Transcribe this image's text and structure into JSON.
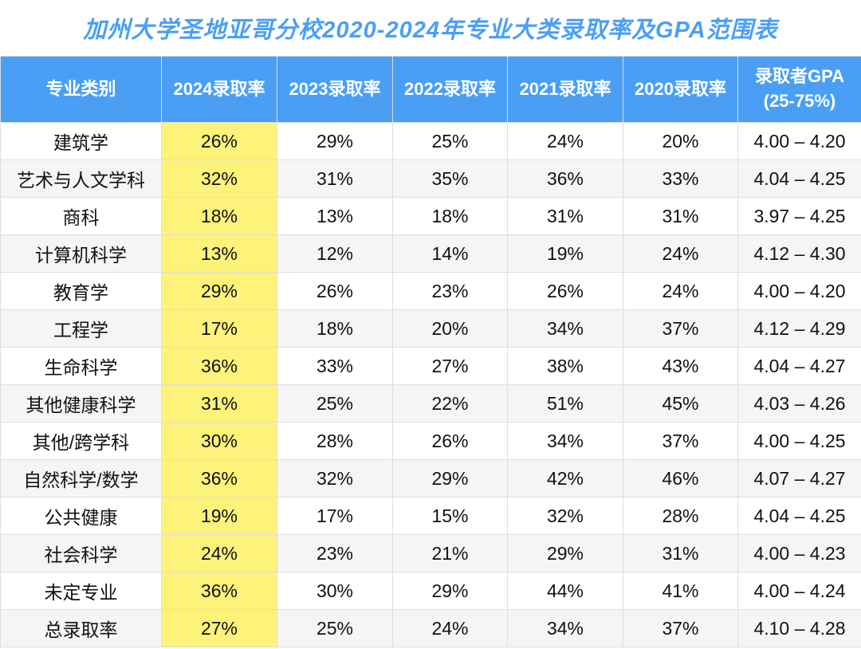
{
  "title": "加州大学圣地亚哥分校2020-2024年专业大类录取率及GPA范围表",
  "colors": {
    "header": "#4a9ff5",
    "highlight": "#fdf27a",
    "title": "#4a9ff5"
  },
  "headers": [
    "专业类别",
    "2024录取率",
    "2023录取率",
    "2022录取率",
    "2021录取率",
    "2020录取率",
    "录取者GPA",
    "(25-75%)"
  ],
  "rows": [
    [
      "建筑学",
      "26%",
      "29%",
      "25%",
      "24%",
      "20%",
      "4.00 – 4.20"
    ],
    [
      "艺术与人文学科",
      "32%",
      "31%",
      "35%",
      "36%",
      "33%",
      "4.04 – 4.25"
    ],
    [
      "商科",
      "18%",
      "13%",
      "18%",
      "31%",
      "31%",
      "3.97 – 4.25"
    ],
    [
      "计算机科学",
      "13%",
      "12%",
      "14%",
      "19%",
      "24%",
      "4.12 – 4.30"
    ],
    [
      "教育学",
      "29%",
      "26%",
      "23%",
      "26%",
      "24%",
      "4.00 – 4.20"
    ],
    [
      "工程学",
      "17%",
      "18%",
      "20%",
      "34%",
      "37%",
      "4.12 – 4.29"
    ],
    [
      "生命科学",
      "36%",
      "33%",
      "27%",
      "38%",
      "43%",
      "4.04 – 4.27"
    ],
    [
      "其他健康科学",
      "31%",
      "25%",
      "22%",
      "51%",
      "45%",
      "4.03 – 4.26"
    ],
    [
      "其他/跨学科",
      "30%",
      "28%",
      "26%",
      "34%",
      "37%",
      "4.00 – 4.25"
    ],
    [
      "自然科学/数学",
      "36%",
      "32%",
      "29%",
      "42%",
      "46%",
      "4.07 – 4.27"
    ],
    [
      "公共健康",
      "19%",
      "17%",
      "15%",
      "32%",
      "28%",
      "4.04 – 4.25"
    ],
    [
      "社会科学",
      "24%",
      "23%",
      "21%",
      "29%",
      "31%",
      "4.00 – 4.23"
    ],
    [
      "未定专业",
      "36%",
      "30%",
      "29%",
      "44%",
      "41%",
      "4.00 – 4.24"
    ],
    [
      "总录取率",
      "27%",
      "25%",
      "24%",
      "34%",
      "37%",
      "4.10 – 4.28"
    ]
  ]
}
